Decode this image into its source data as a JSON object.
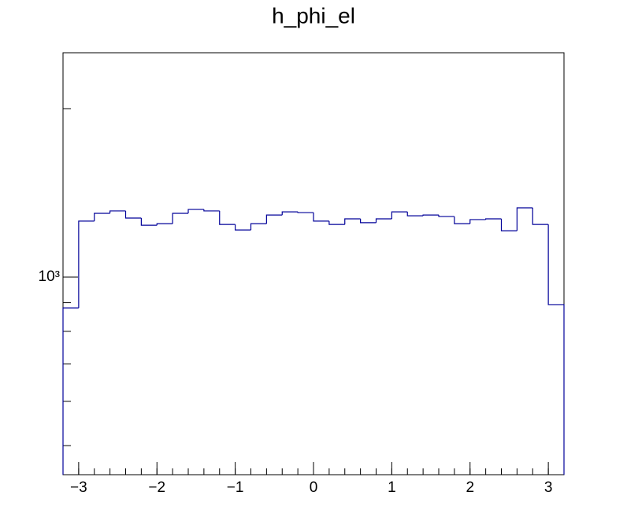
{
  "chart_data": {
    "type": "histogram",
    "title": "h_phi_el",
    "bins": [
      -3.2,
      -3,
      -2.8,
      -2.6,
      -2.4,
      -2.2,
      -2,
      -1.8,
      -1.6,
      -1.4,
      -1.2,
      -1,
      -0.8,
      -0.6,
      -0.4,
      -0.2,
      0,
      0.2,
      0.4,
      0.6,
      0.8,
      1,
      1.2,
      1.4,
      1.6,
      1.8,
      2,
      2.2,
      2.4,
      2.6,
      2.8,
      3,
      3.2
    ],
    "values": [
      881,
      1259,
      1300,
      1313,
      1275,
      1238,
      1246,
      1300,
      1321,
      1313,
      1242,
      1214,
      1246,
      1291,
      1308,
      1304,
      1259,
      1242,
      1271,
      1251,
      1271,
      1308,
      1287,
      1291,
      1283,
      1246,
      1267,
      1271,
      1210,
      1330,
      1242,
      893
    ],
    "color": "#000099",
    "xlim": [
      -3.2,
      3.2
    ],
    "xticks": [
      {
        "value": -3,
        "label": "−3"
      },
      {
        "value": -2,
        "label": "−2"
      },
      {
        "value": -1,
        "label": "−1"
      },
      0,
      1,
      2,
      3
    ],
    "ylim": [
      443.6,
      2517
    ],
    "yticks": [
      {
        "value": 1000,
        "label": "10³"
      }
    ],
    "log_y": true
  }
}
